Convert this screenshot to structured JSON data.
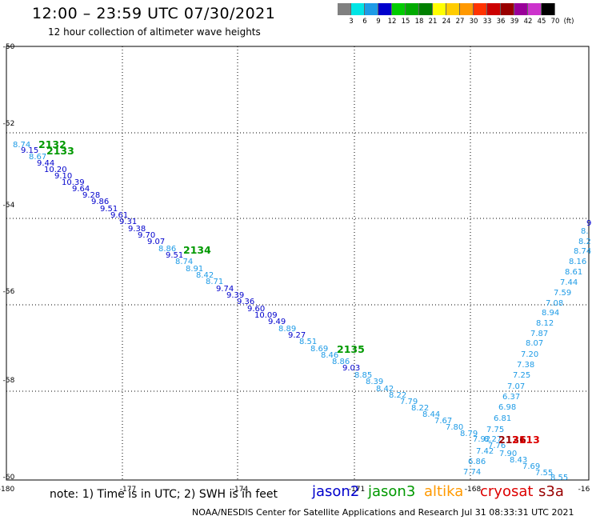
{
  "header": {
    "title": "12:00 – 23:59 UTC 07/30/2021",
    "subtitle": "12 hour collection of altimeter wave heights"
  },
  "colorbar": {
    "labels": [
      "3",
      "6",
      "9",
      "12",
      "15",
      "18",
      "21",
      "24",
      "27",
      "30",
      "33",
      "36",
      "39",
      "42",
      "45",
      "70",
      "(ft)"
    ],
    "colors": [
      "#808080",
      "#00e5e5",
      "#1e9be6",
      "#0000cc",
      "#00cc00",
      "#00aa00",
      "#008000",
      "#ffff00",
      "#ffcc00",
      "#ff9900",
      "#ff3300",
      "#cc0000",
      "#990000",
      "#990099",
      "#cc33cc",
      "#000000"
    ]
  },
  "footer": {
    "note": "note:  1) Time is in UTC;  2) SWH is in feet",
    "credit": "NOAA/NESDIS Center for Satellite Applications and Research",
    "timestamp": "Jul 31 08:33:31 UTC 2021"
  },
  "legend": [
    {
      "name": "jason2",
      "color": "#0000cc"
    },
    {
      "name": "jason3",
      "color": "#009900"
    },
    {
      "name": "altika",
      "color": "#ff9900"
    },
    {
      "name": "cryosat",
      "color": "#dd0000"
    },
    {
      "name": "s3a",
      "color": "#990000"
    }
  ],
  "axes": {
    "lon_ticks": [
      "-180",
      "-177",
      "-174",
      "-171",
      "-168",
      "-16"
    ],
    "lat_ticks": [
      "-50",
      "-52",
      "-54",
      "-56",
      "-58",
      "-60"
    ]
  },
  "orbit_labels": [
    {
      "text": "2132",
      "color": "#009900"
    },
    {
      "text": "2133",
      "color": "#009900"
    },
    {
      "text": "2134",
      "color": "#009900"
    },
    {
      "text": "2135",
      "color": "#009900"
    },
    {
      "text": "2136",
      "color": "#990000"
    },
    {
      "text": "2113",
      "color": "#dd0000"
    }
  ],
  "wave_heights": [
    {
      "v": "8.74",
      "c": "#1e9be6"
    },
    {
      "v": "9.15",
      "c": "#0000cc"
    },
    {
      "v": "8.67",
      "c": "#1e9be6"
    },
    {
      "v": "9.44",
      "c": "#0000cc"
    },
    {
      "v": "10.20",
      "c": "#0000cc"
    },
    {
      "v": "9.10",
      "c": "#0000cc"
    },
    {
      "v": "10.39",
      "c": "#0000cc"
    },
    {
      "v": "9.64",
      "c": "#0000cc"
    },
    {
      "v": "9.28",
      "c": "#0000cc"
    },
    {
      "v": "9.86",
      "c": "#0000cc"
    },
    {
      "v": "9.51",
      "c": "#0000cc"
    },
    {
      "v": "9.61",
      "c": "#0000cc"
    },
    {
      "v": "9.31",
      "c": "#0000cc"
    },
    {
      "v": "9.38",
      "c": "#0000cc"
    },
    {
      "v": "9.70",
      "c": "#0000cc"
    },
    {
      "v": "9.07",
      "c": "#0000cc"
    },
    {
      "v": "8.86",
      "c": "#1e9be6"
    },
    {
      "v": "9.51",
      "c": "#0000cc"
    },
    {
      "v": "8.74",
      "c": "#1e9be6"
    },
    {
      "v": "8.91",
      "c": "#1e9be6"
    },
    {
      "v": "8.42",
      "c": "#1e9be6"
    },
    {
      "v": "8.71",
      "c": "#1e9be6"
    },
    {
      "v": "9.74",
      "c": "#0000cc"
    },
    {
      "v": "9.39",
      "c": "#0000cc"
    },
    {
      "v": "9.36",
      "c": "#0000cc"
    },
    {
      "v": "9.60",
      "c": "#0000cc"
    },
    {
      "v": "10.09",
      "c": "#0000cc"
    },
    {
      "v": "9.49",
      "c": "#0000cc"
    },
    {
      "v": "8.89",
      "c": "#1e9be6"
    },
    {
      "v": "9.27",
      "c": "#0000cc"
    },
    {
      "v": "8.51",
      "c": "#1e9be6"
    },
    {
      "v": "8.69",
      "c": "#1e9be6"
    },
    {
      "v": "8.46",
      "c": "#1e9be6"
    },
    {
      "v": "8.86",
      "c": "#1e9be6"
    },
    {
      "v": "9.03",
      "c": "#0000cc"
    },
    {
      "v": "8.85",
      "c": "#1e9be6"
    },
    {
      "v": "8.39",
      "c": "#1e9be6"
    },
    {
      "v": "8.42",
      "c": "#1e9be6"
    },
    {
      "v": "8.22",
      "c": "#1e9be6"
    },
    {
      "v": "7.79",
      "c": "#1e9be6"
    },
    {
      "v": "8.22",
      "c": "#1e9be6"
    },
    {
      "v": "8.44",
      "c": "#1e9be6"
    },
    {
      "v": "7.67",
      "c": "#1e9be6"
    },
    {
      "v": "7.80",
      "c": "#1e9be6"
    },
    {
      "v": "8.79",
      "c": "#1e9be6"
    },
    {
      "v": "7.92",
      "c": "#1e9be6"
    },
    {
      "v": "8.27",
      "c": "#1e9be6"
    },
    {
      "v": "7.42",
      "c": "#1e9be6"
    },
    {
      "v": "7.76",
      "c": "#1e9be6"
    },
    {
      "v": "7.90",
      "c": "#1e9be6"
    },
    {
      "v": "8.43",
      "c": "#1e9be6"
    },
    {
      "v": "7.69",
      "c": "#1e9be6"
    },
    {
      "v": "7.55",
      "c": "#1e9be6"
    },
    {
      "v": "8.55",
      "c": "#1e9be6"
    },
    {
      "v": "6.86",
      "c": "#1e9be6"
    },
    {
      "v": "7.74",
      "c": "#1e9be6"
    },
    {
      "v": "7.75",
      "c": "#1e9be6"
    },
    {
      "v": "6.81",
      "c": "#1e9be6"
    },
    {
      "v": "6.98",
      "c": "#1e9be6"
    },
    {
      "v": "6.37",
      "c": "#1e9be6"
    },
    {
      "v": "7.07",
      "c": "#1e9be6"
    },
    {
      "v": "7.25",
      "c": "#1e9be6"
    },
    {
      "v": "7.38",
      "c": "#1e9be6"
    },
    {
      "v": "7.20",
      "c": "#1e9be6"
    },
    {
      "v": "8.07",
      "c": "#1e9be6"
    },
    {
      "v": "7.87",
      "c": "#1e9be6"
    },
    {
      "v": "8.12",
      "c": "#1e9be6"
    },
    {
      "v": "8.94",
      "c": "#1e9be6"
    },
    {
      "v": "7.08",
      "c": "#1e9be6"
    },
    {
      "v": "7.59",
      "c": "#1e9be6"
    },
    {
      "v": "7.44",
      "c": "#1e9be6"
    },
    {
      "v": "8.61",
      "c": "#1e9be6"
    },
    {
      "v": "8.16",
      "c": "#1e9be6"
    },
    {
      "v": "8.74",
      "c": "#1e9be6"
    },
    {
      "v": "8.2",
      "c": "#1e9be6"
    },
    {
      "v": "8.",
      "c": "#1e9be6"
    },
    {
      "v": "9",
      "c": "#0000cc"
    }
  ]
}
